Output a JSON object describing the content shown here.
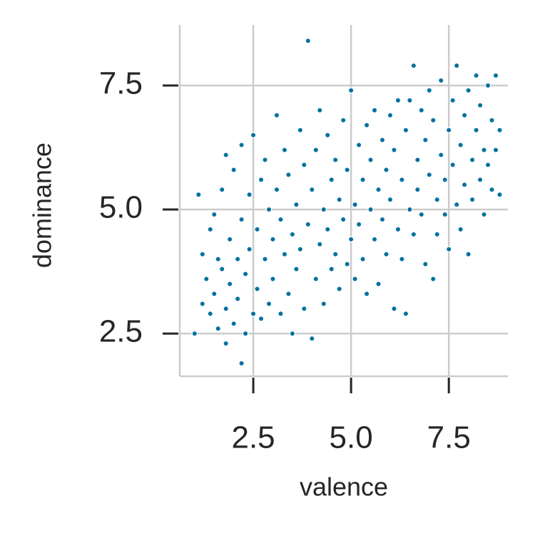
{
  "chart_data": {
    "type": "scatter",
    "x_label": "valence",
    "y_label": "dominance",
    "color": "#00719f",
    "grid": true,
    "xlim": [
      0.62,
      9.01
    ],
    "ylim": [
      1.64,
      8.72
    ],
    "xticks": [
      2.5,
      {
        "value": 5,
        "label": "5.0"
      },
      7.5
    ],
    "yticks": [
      2.5,
      {
        "value": 5,
        "label": "5.0"
      },
      7.5
    ],
    "x": [
      1.0,
      1.1,
      1.2,
      1.2,
      1.3,
      1.4,
      1.4,
      1.5,
      1.5,
      1.6,
      1.6,
      1.7,
      1.7,
      1.8,
      1.8,
      1.8,
      1.9,
      1.9,
      2.0,
      2.0,
      2.1,
      2.1,
      2.2,
      2.2,
      2.2,
      2.3,
      2.3,
      2.4,
      2.4,
      2.5,
      2.5,
      2.6,
      2.6,
      2.7,
      2.7,
      2.8,
      2.8,
      2.9,
      2.9,
      3.0,
      3.0,
      3.1,
      3.1,
      3.2,
      3.2,
      3.3,
      3.3,
      3.4,
      3.4,
      3.5,
      3.5,
      3.6,
      3.6,
      3.7,
      3.7,
      3.8,
      3.8,
      3.9,
      3.9,
      4.0,
      4.0,
      4.1,
      4.1,
      4.2,
      4.2,
      4.3,
      4.3,
      4.4,
      4.4,
      4.5,
      4.5,
      4.6,
      4.6,
      4.7,
      4.7,
      4.8,
      4.8,
      4.9,
      4.9,
      5.0,
      5.0,
      5.1,
      5.1,
      5.2,
      5.2,
      5.3,
      5.3,
      5.4,
      5.4,
      5.5,
      5.5,
      5.6,
      5.6,
      5.7,
      5.7,
      5.8,
      5.8,
      5.9,
      5.9,
      6.0,
      6.0,
      6.1,
      6.1,
      6.2,
      6.2,
      6.3,
      6.3,
      6.4,
      6.4,
      6.5,
      6.5,
      6.6,
      6.6,
      6.7,
      6.7,
      6.8,
      6.8,
      6.9,
      6.9,
      7.0,
      7.0,
      7.1,
      7.1,
      7.2,
      7.2,
      7.3,
      7.3,
      7.4,
      7.4,
      7.5,
      7.5,
      7.6,
      7.6,
      7.7,
      7.7,
      7.8,
      7.8,
      7.9,
      7.9,
      8.0,
      8.0,
      8.1,
      8.1,
      8.2,
      8.2,
      8.3,
      8.3,
      8.4,
      8.4,
      8.5,
      8.5,
      8.6,
      8.6,
      8.7,
      8.7,
      8.8,
      8.8
    ],
    "y": [
      2.5,
      5.3,
      4.1,
      3.1,
      3.6,
      2.9,
      4.6,
      3.3,
      4.9,
      2.6,
      4.0,
      3.8,
      5.4,
      2.3,
      3.0,
      6.1,
      4.4,
      3.5,
      2.7,
      5.8,
      4.0,
      3.2,
      1.9,
      4.8,
      6.3,
      2.5,
      3.7,
      5.3,
      4.2,
      2.9,
      6.5,
      3.4,
      4.6,
      5.6,
      2.8,
      4.0,
      6.0,
      3.1,
      5.0,
      4.4,
      3.6,
      6.9,
      5.4,
      2.9,
      4.8,
      4.1,
      6.2,
      3.3,
      5.7,
      2.5,
      4.5,
      5.1,
      3.8,
      6.6,
      4.2,
      3.0,
      5.9,
      8.4,
      4.7,
      2.4,
      5.4,
      3.6,
      6.2,
      4.3,
      7.0,
      3.1,
      5.0,
      4.6,
      6.5,
      3.8,
      5.6,
      4.1,
      6.0,
      3.4,
      5.2,
      4.8,
      6.8,
      3.9,
      5.8,
      4.4,
      7.4,
      5.1,
      3.6,
      6.3,
      4.7,
      5.6,
      4.0,
      6.7,
      3.3,
      5.0,
      6.0,
      4.4,
      7.0,
      5.4,
      3.5,
      6.4,
      4.8,
      5.8,
      4.1,
      6.9,
      5.2,
      3.0,
      6.2,
      4.6,
      7.2,
      5.6,
      4.0,
      6.6,
      2.9,
      5.0,
      7.2,
      7.9,
      4.5,
      6.0,
      5.4,
      7.0,
      4.9,
      6.4,
      3.9,
      5.7,
      7.4,
      3.6,
      6.8,
      5.2,
      4.5,
      6.1,
      7.6,
      5.6,
      4.9,
      6.6,
      4.2,
      7.2,
      5.9,
      5.1,
      7.9,
      6.3,
      4.6,
      6.9,
      5.5,
      4.1,
      7.4,
      6.0,
      5.2,
      7.7,
      6.6,
      5.6,
      7.1,
      6.2,
      4.9,
      7.5,
      5.9,
      6.8,
      5.4,
      7.7,
      6.2,
      5.3,
      6.6
    ]
  }
}
